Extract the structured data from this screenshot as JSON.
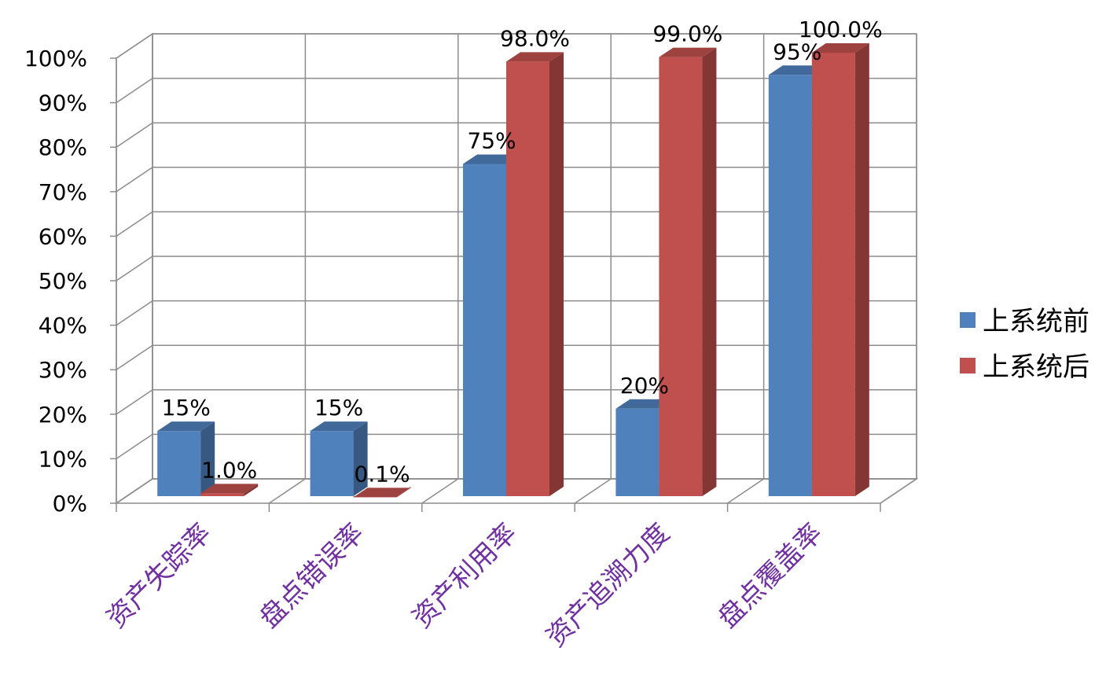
{
  "chart_data": {
    "type": "bar",
    "categories": [
      "资产失踪率",
      "盘点错误率",
      "资产利用率",
      "资产追溯力度",
      "盘点覆盖率"
    ],
    "series": [
      {
        "name": "上系统前",
        "values": [
          15,
          15,
          75,
          20,
          95
        ],
        "labels": [
          "15%",
          "15%",
          "75%",
          "20%",
          "95%"
        ],
        "color": "#4f81bd"
      },
      {
        "name": "上系统后",
        "values": [
          1.0,
          0.1,
          98.0,
          99.0,
          100.0
        ],
        "labels": [
          "1.0%",
          "0.1%",
          "98.0%",
          "99.0%",
          "100.0%"
        ],
        "color": "#c0504d"
      }
    ],
    "ylim": [
      0,
      100
    ],
    "yticks": [
      "0%",
      "10%",
      "20%",
      "30%",
      "40%",
      "50%",
      "60%",
      "70%",
      "80%",
      "90%",
      "100%"
    ],
    "style": "3d-clustered-column",
    "grid": true,
    "legend": "right",
    "category_label_color": "#7030a0"
  }
}
